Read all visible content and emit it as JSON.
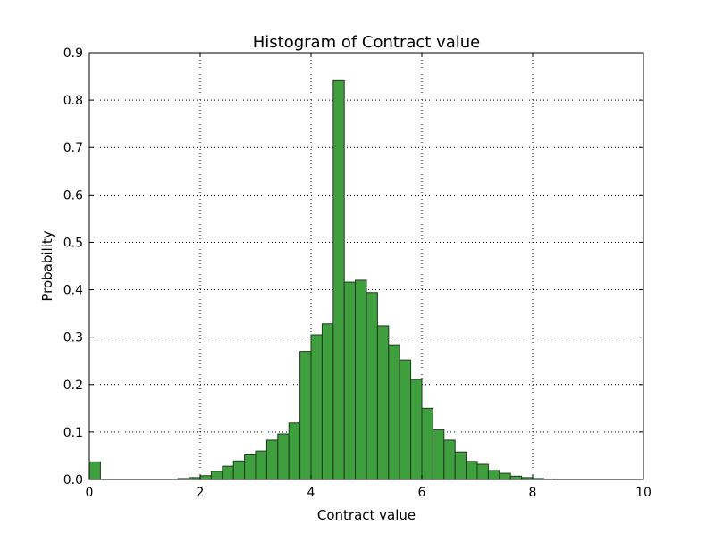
{
  "chart_data": {
    "type": "bar",
    "title": "Histogram of Contract value",
    "xlabel": "Contract value",
    "ylabel": "Probability",
    "xlim": [
      0,
      10
    ],
    "ylim": [
      0,
      0.9
    ],
    "xticks": [
      0,
      2,
      4,
      6,
      8,
      10
    ],
    "yticks": [
      0.0,
      0.1,
      0.2,
      0.3,
      0.4,
      0.5,
      0.6,
      0.7,
      0.8,
      0.9
    ],
    "xtick_labels": [
      "0",
      "2",
      "4",
      "6",
      "8",
      "10"
    ],
    "ytick_labels": [
      "0.0",
      "0.1",
      "0.2",
      "0.3",
      "0.4",
      "0.5",
      "0.6",
      "0.7",
      "0.8",
      "0.9"
    ],
    "grid": true,
    "bar_color": "#3f9f3f",
    "edge_color": "#1e3a1e",
    "bins": [
      {
        "x0": 0.0,
        "x1": 0.2,
        "value": 0.037
      },
      {
        "x0": 1.6,
        "x1": 1.8,
        "value": 0.002
      },
      {
        "x0": 1.8,
        "x1": 2.0,
        "value": 0.004
      },
      {
        "x0": 2.0,
        "x1": 2.2,
        "value": 0.008
      },
      {
        "x0": 2.2,
        "x1": 2.4,
        "value": 0.017
      },
      {
        "x0": 2.4,
        "x1": 2.6,
        "value": 0.028
      },
      {
        "x0": 2.6,
        "x1": 2.8,
        "value": 0.039
      },
      {
        "x0": 2.8,
        "x1": 3.0,
        "value": 0.052
      },
      {
        "x0": 3.0,
        "x1": 3.2,
        "value": 0.06
      },
      {
        "x0": 3.2,
        "x1": 3.4,
        "value": 0.083
      },
      {
        "x0": 3.4,
        "x1": 3.6,
        "value": 0.096
      },
      {
        "x0": 3.6,
        "x1": 3.8,
        "value": 0.119
      },
      {
        "x0": 3.8,
        "x1": 4.0,
        "value": 0.27
      },
      {
        "x0": 4.0,
        "x1": 4.2,
        "value": 0.305
      },
      {
        "x0": 4.2,
        "x1": 4.4,
        "value": 0.328
      },
      {
        "x0": 4.4,
        "x1": 4.6,
        "value": 0.841
      },
      {
        "x0": 4.6,
        "x1": 4.8,
        "value": 0.416
      },
      {
        "x0": 4.8,
        "x1": 5.0,
        "value": 0.42
      },
      {
        "x0": 5.0,
        "x1": 5.2,
        "value": 0.394
      },
      {
        "x0": 5.2,
        "x1": 5.4,
        "value": 0.324
      },
      {
        "x0": 5.4,
        "x1": 5.6,
        "value": 0.284
      },
      {
        "x0": 5.6,
        "x1": 5.8,
        "value": 0.252
      },
      {
        "x0": 5.8,
        "x1": 6.0,
        "value": 0.211
      },
      {
        "x0": 6.0,
        "x1": 6.2,
        "value": 0.15
      },
      {
        "x0": 6.2,
        "x1": 6.4,
        "value": 0.105
      },
      {
        "x0": 6.4,
        "x1": 6.6,
        "value": 0.083
      },
      {
        "x0": 6.6,
        "x1": 6.8,
        "value": 0.058
      },
      {
        "x0": 6.8,
        "x1": 7.0,
        "value": 0.038
      },
      {
        "x0": 7.0,
        "x1": 7.2,
        "value": 0.032
      },
      {
        "x0": 7.2,
        "x1": 7.4,
        "value": 0.019
      },
      {
        "x0": 7.4,
        "x1": 7.6,
        "value": 0.013
      },
      {
        "x0": 7.6,
        "x1": 7.8,
        "value": 0.007
      },
      {
        "x0": 7.8,
        "x1": 8.0,
        "value": 0.004
      },
      {
        "x0": 8.0,
        "x1": 8.2,
        "value": 0.002
      },
      {
        "x0": 8.2,
        "x1": 8.4,
        "value": 0.001
      }
    ]
  }
}
